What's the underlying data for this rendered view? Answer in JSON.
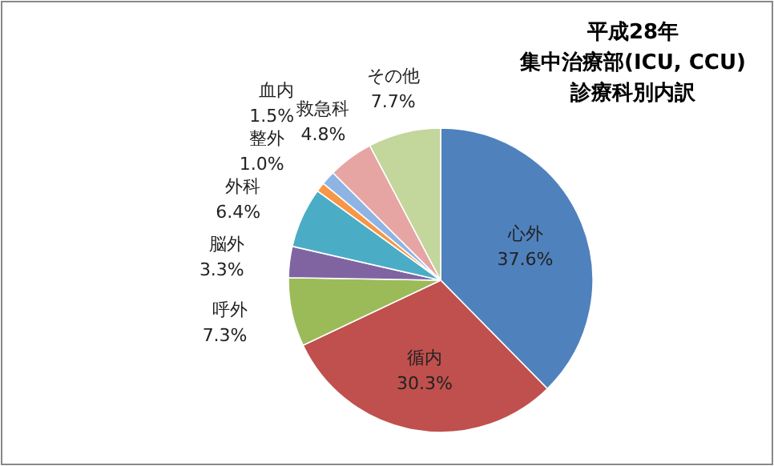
{
  "chart_data": {
    "type": "pie",
    "title": "平成28年",
    "subtitle": "集中治療部(ICU, CCU)診療科別内訳",
    "categories": [
      "心外",
      "循内",
      "呼外",
      "脳外",
      "外科",
      "整外",
      "血内",
      "救急科",
      "その他"
    ],
    "values": [
      37.6,
      30.3,
      7.3,
      3.3,
      6.4,
      1.0,
      1.5,
      4.8,
      7.7
    ],
    "value_labels": [
      "37.6%",
      "30.3%",
      "7.3%",
      "3.3%",
      "6.4%",
      "1.0%",
      "1.5%",
      "4.8%",
      "7.7%"
    ],
    "colors": [
      "#4f81bd",
      "#c0504d",
      "#9bbb59",
      "#8064a2",
      "#4bacc6",
      "#f79646",
      "#8eb4e3",
      "#e6a5a3",
      "#c3d69b"
    ],
    "legend": false
  }
}
